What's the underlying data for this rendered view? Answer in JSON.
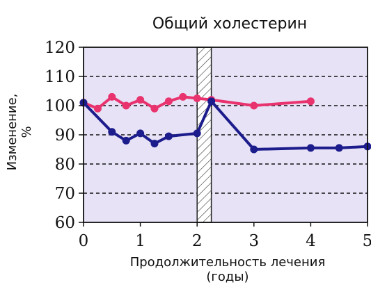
{
  "chart_data": {
    "type": "line",
    "title": "Общий холестерин",
    "xlabel_line1": "Продолжительность лечения",
    "xlabel_line2": "(годы)",
    "ylabel_line1": "Изменение,",
    "ylabel_line2": "%",
    "xlim": [
      0,
      5
    ],
    "ylim": [
      60,
      120
    ],
    "xticks": [
      "0",
      "1",
      "2",
      "3",
      "4",
      "5"
    ],
    "yticks": [
      "60",
      "70",
      "80",
      "90",
      "100",
      "110",
      "120"
    ],
    "grid": "dashed horizontal",
    "gap_band": [
      2.0,
      2.25
    ],
    "colors": {
      "plot_background": "#e8e2f6",
      "pink_series": "#e8336f",
      "blue_series": "#1c1c8c"
    },
    "series": [
      {
        "color_key": "pink_series",
        "x": [
          0,
          0.25,
          0.5,
          0.75,
          1.0,
          1.25,
          1.5,
          1.75,
          2.0,
          2.25,
          3.0,
          4.0
        ],
        "y": [
          101,
          99,
          103,
          100,
          102,
          99,
          101.5,
          103,
          102.5,
          102,
          100,
          101.5
        ]
      },
      {
        "color_key": "blue_series",
        "x": [
          0,
          0.5,
          0.75,
          1.0,
          1.25,
          1.5,
          2.0,
          2.25,
          3.0,
          4.0,
          4.5,
          5.0
        ],
        "y": [
          101,
          91,
          88,
          90.5,
          87,
          89.5,
          90.5,
          101.5,
          85,
          85.5,
          85.5,
          86
        ]
      }
    ]
  }
}
